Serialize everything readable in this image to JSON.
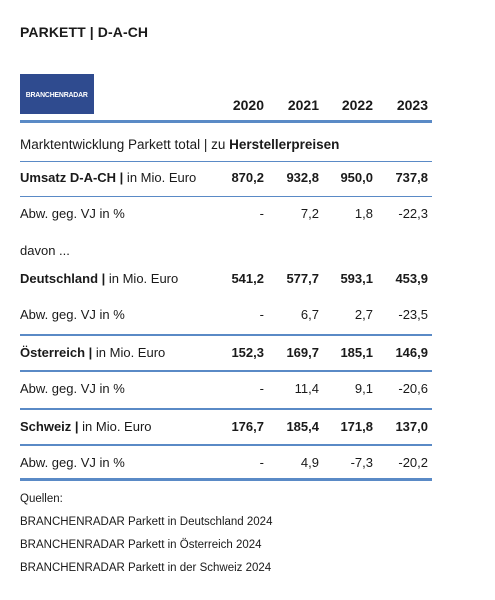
{
  "title": "PARKETT | D-A-CH",
  "logo_text": "BRANCHENRADAR",
  "years": [
    "2020",
    "2021",
    "2022",
    "2023"
  ],
  "subtitle": {
    "prefix": "Marktentwicklung Parkett total | zu ",
    "emphasis": "Herstellerpreisen"
  },
  "rows": [
    {
      "label_bold": "Umsatz D-A-CH |",
      "label_rest": " in Mio. Euro",
      "values": [
        "870,2",
        "932,8",
        "950,0",
        "737,8"
      ],
      "bold": true
    },
    {
      "label_bold": "",
      "label_rest": "Abw. geg. VJ in %",
      "values": [
        "-",
        "7,2",
        "1,8",
        "-22,3"
      ],
      "bold": false
    },
    {
      "label_bold": "",
      "label_rest": "davon ...",
      "values": [],
      "bold": false
    },
    {
      "label_bold": "Deutschland |",
      "label_rest": " in Mio. Euro",
      "values": [
        "541,2",
        "577,7",
        "593,1",
        "453,9"
      ],
      "bold": true
    },
    {
      "label_bold": "",
      "label_rest": "Abw. geg. VJ in %",
      "values": [
        "-",
        "6,7",
        "2,7",
        "-23,5"
      ],
      "bold": false
    },
    {
      "label_bold": "Österreich |",
      "label_rest": " in Mio. Euro",
      "values": [
        "152,3",
        "169,7",
        "185,1",
        "146,9"
      ],
      "bold": true
    },
    {
      "label_bold": "",
      "label_rest": "Abw. geg. VJ in %",
      "values": [
        "-",
        "11,4",
        "9,1",
        "-20,6"
      ],
      "bold": false
    },
    {
      "label_bold": "Schweiz |",
      "label_rest": " in Mio. Euro",
      "values": [
        "176,7",
        "185,4",
        "171,8",
        "137,0"
      ],
      "bold": true
    },
    {
      "label_bold": "",
      "label_rest": "Abw. geg. VJ in %",
      "values": [
        "-",
        "4,9",
        "-7,3",
        "-20,2"
      ],
      "bold": false
    }
  ],
  "sources": [
    "Quellen:",
    "BRANCHENRADAR Parkett in Deutschland 2024",
    "BRANCHENRADAR Parkett in Österreich 2024",
    "BRANCHENRADAR Parkett in der Schweiz 2024"
  ],
  "colors": {
    "accent": "#5a8ac6",
    "logo_bg": "#2f4b8f"
  }
}
